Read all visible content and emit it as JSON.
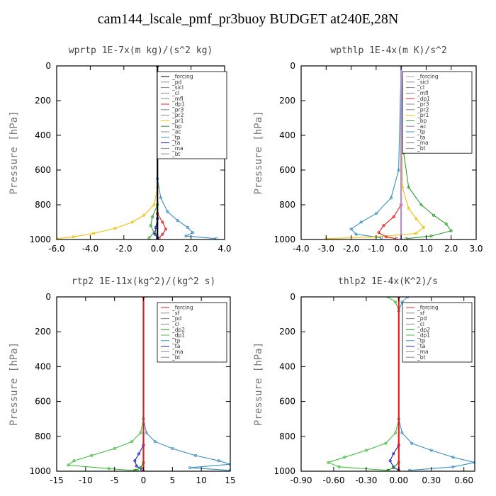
{
  "figure": {
    "title": "cam144_lscale_pmf_pr3buoy  BUDGET at240E,28N"
  },
  "chart_data": [
    {
      "type": "line",
      "title": "wprtp  1E-7x(m kg)/(s^2 kg)",
      "ylabel": "Pressure [hPa]",
      "xlim": [
        -6,
        4
      ],
      "ylim": [
        1000,
        0
      ],
      "xticks": [
        "-6.0",
        "-4.0",
        "-2.0",
        "0.0",
        "2.0",
        "4.0"
      ],
      "xtick_values": [
        -6,
        -4,
        -2,
        0,
        2,
        4
      ],
      "yticks": [
        "0",
        "200",
        "400",
        "600",
        "800",
        "1000"
      ],
      "ytick_values": [
        0,
        200,
        400,
        600,
        800,
        1000
      ],
      "legend_position": "top-right",
      "legend": [
        "_forcing",
        "_pd",
        "_sicl",
        "_cl",
        "_mfl",
        "_dp1",
        "_pr3",
        "_pr2",
        "_pr1",
        "_bp",
        "_ac",
        "_tp",
        "_ta",
        "_ma",
        "_bt"
      ],
      "series": [
        {
          "name": "_pr1",
          "color": "#f0c000",
          "points": [
            [
              0,
              0
            ],
            [
              0,
              700
            ],
            [
              -0.2,
              800
            ],
            [
              -0.8,
              860
            ],
            [
              -1.5,
              900
            ],
            [
              -2.5,
              935
            ],
            [
              -3.8,
              965
            ],
            [
              -5.0,
              985
            ],
            [
              -6.0,
              995
            ]
          ]
        },
        {
          "name": "_tp",
          "color": "#3a8fc4",
          "points": [
            [
              0,
              0
            ],
            [
              0,
              650
            ],
            [
              0.2,
              760
            ],
            [
              0.6,
              840
            ],
            [
              1.2,
              890
            ],
            [
              1.8,
              930
            ],
            [
              2.1,
              960
            ],
            [
              1.7,
              980
            ],
            [
              3.5,
              995
            ]
          ]
        },
        {
          "name": "_bp",
          "color": "#2ea02e",
          "points": [
            [
              0,
              0
            ],
            [
              0,
              800
            ],
            [
              -0.3,
              870
            ],
            [
              -0.4,
              920
            ],
            [
              -0.2,
              960
            ],
            [
              -0.5,
              990
            ]
          ]
        },
        {
          "name": "_dp1",
          "color": "#e02020",
          "points": [
            [
              0,
              0
            ],
            [
              0,
              850
            ],
            [
              0.3,
              900
            ],
            [
              0.5,
              940
            ],
            [
              0.3,
              970
            ],
            [
              0.1,
              990
            ]
          ]
        },
        {
          "name": "_ta",
          "color": "#2020c0",
          "points": [
            [
              0,
              0
            ],
            [
              0,
              880
            ],
            [
              -0.1,
              930
            ],
            [
              -0.15,
              970
            ],
            [
              0,
              990
            ]
          ]
        },
        {
          "name": "_forcing",
          "color": "#000000",
          "points": [
            [
              0,
              0
            ],
            [
              0,
              1000
            ]
          ]
        }
      ]
    },
    {
      "type": "line",
      "title": "wpthlp  1E-4x(m K)/s^2",
      "ylabel": "Pressure [hPa]",
      "xlim": [
        -4,
        3
      ],
      "ylim": [
        1000,
        0
      ],
      "xticks": [
        "-4.0",
        "-3.0",
        "-2.0",
        "-1.0",
        "0.0",
        "1.0",
        "2.0",
        "3.0"
      ],
      "xtick_values": [
        -4,
        -3,
        -2,
        -1,
        0,
        1,
        2,
        3
      ],
      "yticks": [
        "0",
        "200",
        "400",
        "600",
        "800",
        "1000"
      ],
      "ytick_values": [
        0,
        200,
        400,
        600,
        800,
        1000
      ],
      "legend_position": "top-right",
      "legend": [
        "_forcing",
        "_sicl",
        "_cl",
        "_mfl",
        "_dp1",
        "_pr3",
        "_pr2",
        "_pr1",
        "_bp",
        "_ac",
        "_tp",
        "_ta",
        "_ma",
        "_bt"
      ],
      "series": [
        {
          "name": "_bp",
          "color": "#2ea02e",
          "points": [
            [
              0,
              0
            ],
            [
              0.1,
              500
            ],
            [
              0.3,
              700
            ],
            [
              0.8,
              800
            ],
            [
              1.3,
              860
            ],
            [
              1.8,
              910
            ],
            [
              2.0,
              950
            ],
            [
              1.2,
              980
            ],
            [
              0.2,
              995
            ]
          ]
        },
        {
          "name": "_tp",
          "color": "#3a8fc4",
          "points": [
            [
              0,
              0
            ],
            [
              -0.1,
              600
            ],
            [
              -0.4,
              760
            ],
            [
              -1.0,
              850
            ],
            [
              -1.6,
              900
            ],
            [
              -2.0,
              940
            ],
            [
              -1.8,
              970
            ],
            [
              -0.8,
              990
            ]
          ]
        },
        {
          "name": "_pr1",
          "color": "#f0c000",
          "points": [
            [
              0,
              0
            ],
            [
              0.05,
              700
            ],
            [
              0.3,
              820
            ],
            [
              0.6,
              880
            ],
            [
              0.9,
              930
            ],
            [
              0.6,
              965
            ],
            [
              -1.0,
              985
            ],
            [
              -3.0,
              995
            ]
          ]
        },
        {
          "name": "_dp1",
          "color": "#e02020",
          "points": [
            [
              0,
              0
            ],
            [
              0,
              800
            ],
            [
              -0.3,
              870
            ],
            [
              -0.7,
              920
            ],
            [
              -0.9,
              960
            ],
            [
              -0.6,
              985
            ],
            [
              -0.2,
              995
            ]
          ]
        },
        {
          "name": "_forcing",
          "color": "#b090d8",
          "points": [
            [
              0,
              0
            ],
            [
              0,
              1000
            ]
          ]
        }
      ]
    },
    {
      "type": "line",
      "title": "rtp2  1E-11x(kg^2)/(kg^2 s)",
      "ylabel": "Pressure [hPa]",
      "xlim": [
        -15,
        15
      ],
      "ylim": [
        1000,
        0
      ],
      "xticks": [
        "-15",
        "-10",
        "-5",
        "0",
        "5",
        "10",
        "15"
      ],
      "xtick_values": [
        -15,
        -10,
        -5,
        0,
        5,
        10,
        15
      ],
      "yticks": [
        "0",
        "200",
        "400",
        "600",
        "800",
        "1000"
      ],
      "ytick_values": [
        0,
        200,
        400,
        600,
        800,
        1000
      ],
      "legend_position": "top-right",
      "legend": [
        "_forcing",
        "_sf",
        "_pd",
        "_cl",
        "_dp2",
        "_dp1",
        "_tp",
        "_ta",
        "_ma",
        "_bt"
      ],
      "series": [
        {
          "name": "_dp1",
          "color": "#40c040",
          "points": [
            [
              0,
              0
            ],
            [
              0,
              700
            ],
            [
              -0.5,
              780
            ],
            [
              -2,
              830
            ],
            [
              -5,
              870
            ],
            [
              -9,
              910
            ],
            [
              -12,
              940
            ],
            [
              -13,
              965
            ],
            [
              -6,
              985
            ],
            [
              -1,
              998
            ]
          ]
        },
        {
          "name": "_tp",
          "color": "#3a8fc4",
          "points": [
            [
              0,
              0
            ],
            [
              0,
              700
            ],
            [
              0.5,
              780
            ],
            [
              2,
              830
            ],
            [
              5,
              870
            ],
            [
              9,
              910
            ],
            [
              13,
              940
            ],
            [
              15,
              960
            ],
            [
              8,
              980
            ],
            [
              15,
              995
            ]
          ]
        },
        {
          "name": "_ta",
          "color": "#2020c0",
          "points": [
            [
              0,
              0
            ],
            [
              0,
              850
            ],
            [
              -0.8,
              900
            ],
            [
              -1.5,
              940
            ],
            [
              -1.2,
              970
            ],
            [
              -0.3,
              990
            ]
          ]
        },
        {
          "name": "_dp2",
          "color": "#208a20",
          "points": [
            [
              0,
              0
            ],
            [
              0,
              950
            ],
            [
              -0.5,
              980
            ],
            [
              -1.5,
              995
            ]
          ]
        },
        {
          "name": "_forcing",
          "color": "#e02020",
          "points": [
            [
              0,
              0
            ],
            [
              0,
              1000
            ]
          ]
        }
      ]
    },
    {
      "type": "line",
      "title": "thlp2  1E-4x(K^2)/s",
      "ylabel": "Pressure [hPa]",
      "xlim": [
        -0.9,
        0.7
      ],
      "ylim": [
        1000,
        0
      ],
      "xticks": [
        "-0.90",
        "-0.60",
        "-0.30",
        "0.00",
        "0.30",
        "0.60"
      ],
      "xtick_values": [
        -0.9,
        -0.6,
        -0.3,
        0,
        0.3,
        0.6
      ],
      "yticks": [
        "0",
        "200",
        "400",
        "600",
        "800",
        "1000"
      ],
      "ytick_values": [
        0,
        200,
        400,
        600,
        800,
        1000
      ],
      "legend_position": "top-right",
      "legend": [
        "_forcing",
        "_sf",
        "_pd",
        "_cl",
        "_dp2",
        "_dp1",
        "_tp",
        "_ta",
        "_ma",
        "_bt"
      ],
      "series": [
        {
          "name": "_dp1",
          "color": "#40c040",
          "points": [
            [
              -0.1,
              0
            ],
            [
              -0.03,
              30
            ],
            [
              0,
              80
            ],
            [
              0,
              700
            ],
            [
              -0.03,
              780
            ],
            [
              -0.12,
              840
            ],
            [
              -0.3,
              880
            ],
            [
              -0.5,
              920
            ],
            [
              -0.65,
              950
            ],
            [
              -0.55,
              975
            ],
            [
              -0.1,
              995
            ]
          ]
        },
        {
          "name": "_tp",
          "color": "#3a8fc4",
          "points": [
            [
              0.08,
              0
            ],
            [
              0.03,
              30
            ],
            [
              0,
              80
            ],
            [
              0,
              700
            ],
            [
              0.03,
              780
            ],
            [
              0.12,
              840
            ],
            [
              0.3,
              880
            ],
            [
              0.5,
              920
            ],
            [
              0.7,
              950
            ],
            [
              0.5,
              975
            ],
            [
              0.1,
              995
            ]
          ]
        },
        {
          "name": "_ta",
          "color": "#2020c0",
          "points": [
            [
              0,
              0
            ],
            [
              0,
              850
            ],
            [
              -0.05,
              900
            ],
            [
              -0.08,
              940
            ],
            [
              -0.05,
              975
            ],
            [
              0,
              995
            ]
          ]
        },
        {
          "name": "_dp2",
          "color": "#208a20",
          "points": [
            [
              0,
              0
            ],
            [
              0,
              950
            ],
            [
              -0.05,
              980
            ],
            [
              -0.1,
              995
            ]
          ]
        },
        {
          "name": "_forcing",
          "color": "#e02020",
          "points": [
            [
              0,
              0
            ],
            [
              0,
              1000
            ]
          ]
        }
      ]
    }
  ]
}
